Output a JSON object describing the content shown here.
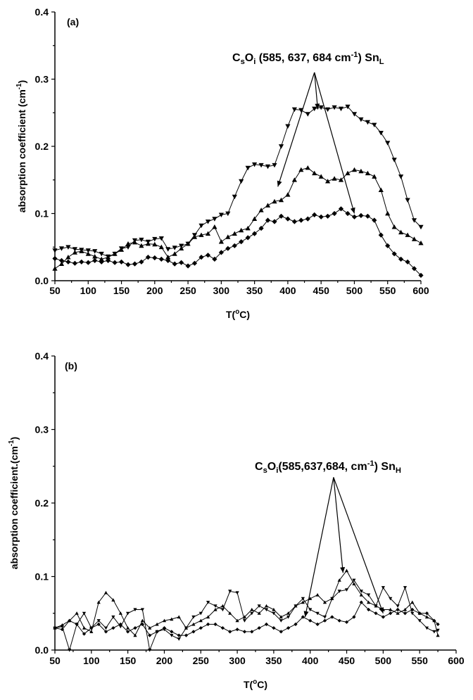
{
  "chart_data": [
    {
      "panel": "(a)",
      "type": "line",
      "xlabel": "T(°C)",
      "ylabel": "absorption coefficient (cm⁻¹)",
      "xlim": [
        50,
        600
      ],
      "ylim": [
        0,
        0.4
      ],
      "xticks": [
        50,
        100,
        150,
        200,
        250,
        300,
        350,
        400,
        450,
        500,
        550,
        600
      ],
      "yticks": [
        0.0,
        0.1,
        0.2,
        0.3,
        0.4
      ],
      "ytick_labels": [
        "0.0",
        "0.1",
        "0.2",
        "0.3",
        "0.4"
      ],
      "annotation": {
        "parts": [
          {
            "t": "C",
            "s": "normal"
          },
          {
            "t": "s",
            "s": "sub"
          },
          {
            "t": "O",
            "s": "normal"
          },
          {
            "t": "i",
            "s": "sub"
          },
          {
            "t": " (585, 637, 684 cm",
            "s": "normal"
          },
          {
            "t": "-1",
            "s": "sup"
          },
          {
            "t": ") Sn",
            "s": "normal"
          },
          {
            "t": "L",
            "s": "sub"
          }
        ],
        "arrow_origin": [
          440,
          0.31
        ],
        "arrow_targets": [
          [
            385,
            0.14
          ],
          [
            445,
            0.255
          ],
          [
            500,
            0.1
          ]
        ]
      },
      "series": [
        {
          "marker": "triangle-down",
          "x": [
            50,
            60,
            70,
            80,
            90,
            100,
            110,
            120,
            130,
            140,
            150,
            160,
            170,
            180,
            190,
            200,
            210,
            220,
            230,
            240,
            250,
            260,
            270,
            280,
            290,
            300,
            310,
            320,
            330,
            340,
            350,
            360,
            370,
            380,
            390,
            400,
            410,
            420,
            430,
            440,
            450,
            460,
            470,
            480,
            490,
            500,
            510,
            520,
            530,
            540,
            550,
            560,
            570,
            580,
            590,
            600
          ],
          "y": [
            0.045,
            0.048,
            0.05,
            0.047,
            0.046,
            0.045,
            0.044,
            0.04,
            0.036,
            0.04,
            0.048,
            0.05,
            0.06,
            0.061,
            0.058,
            0.062,
            0.063,
            0.047,
            0.049,
            0.052,
            0.055,
            0.068,
            0.082,
            0.088,
            0.092,
            0.098,
            0.1,
            0.125,
            0.148,
            0.168,
            0.173,
            0.172,
            0.17,
            0.172,
            0.2,
            0.23,
            0.255,
            0.254,
            0.248,
            0.256,
            0.258,
            0.255,
            0.258,
            0.256,
            0.259,
            0.248,
            0.24,
            0.236,
            0.232,
            0.22,
            0.205,
            0.18,
            0.155,
            0.12,
            0.09,
            0.08
          ]
        },
        {
          "marker": "triangle-up",
          "x": [
            50,
            60,
            70,
            80,
            90,
            100,
            110,
            120,
            130,
            140,
            150,
            160,
            170,
            180,
            190,
            200,
            210,
            220,
            230,
            240,
            250,
            260,
            270,
            280,
            290,
            300,
            310,
            320,
            330,
            340,
            350,
            360,
            370,
            380,
            390,
            400,
            410,
            420,
            430,
            440,
            450,
            460,
            470,
            480,
            490,
            500,
            510,
            520,
            530,
            540,
            550,
            560,
            570,
            580,
            590,
            600
          ],
          "y": [
            0.018,
            0.025,
            0.035,
            0.042,
            0.044,
            0.04,
            0.036,
            0.032,
            0.035,
            0.04,
            0.046,
            0.055,
            0.057,
            0.052,
            0.055,
            0.054,
            0.05,
            0.035,
            0.04,
            0.048,
            0.055,
            0.065,
            0.068,
            0.07,
            0.08,
            0.058,
            0.065,
            0.07,
            0.075,
            0.078,
            0.092,
            0.105,
            0.112,
            0.118,
            0.12,
            0.128,
            0.15,
            0.165,
            0.168,
            0.16,
            0.155,
            0.148,
            0.152,
            0.15,
            0.16,
            0.165,
            0.163,
            0.16,
            0.155,
            0.135,
            0.1,
            0.08,
            0.072,
            0.068,
            0.062,
            0.056
          ]
        },
        {
          "marker": "diamond",
          "x": [
            50,
            60,
            70,
            80,
            90,
            100,
            110,
            120,
            130,
            140,
            150,
            160,
            170,
            180,
            190,
            200,
            210,
            220,
            230,
            240,
            250,
            260,
            270,
            280,
            290,
            300,
            310,
            320,
            330,
            340,
            350,
            360,
            370,
            380,
            390,
            400,
            410,
            420,
            430,
            440,
            450,
            460,
            470,
            480,
            490,
            500,
            510,
            520,
            530,
            540,
            550,
            560,
            570,
            580,
            590,
            600
          ],
          "y": [
            0.033,
            0.03,
            0.028,
            0.026,
            0.028,
            0.027,
            0.03,
            0.028,
            0.03,
            0.027,
            0.028,
            0.024,
            0.025,
            0.028,
            0.035,
            0.034,
            0.032,
            0.03,
            0.025,
            0.027,
            0.022,
            0.026,
            0.035,
            0.038,
            0.032,
            0.042,
            0.048,
            0.052,
            0.058,
            0.064,
            0.07,
            0.078,
            0.09,
            0.088,
            0.096,
            0.092,
            0.088,
            0.09,
            0.092,
            0.098,
            0.095,
            0.096,
            0.1,
            0.107,
            0.1,
            0.095,
            0.097,
            0.096,
            0.09,
            0.068,
            0.052,
            0.04,
            0.032,
            0.028,
            0.018,
            0.008
          ]
        }
      ]
    },
    {
      "panel": "(b)",
      "type": "line",
      "xlabel": "T(°C)",
      "ylabel": "absorption coefficient.(cm⁻¹)",
      "xlim": [
        50,
        600
      ],
      "ylim": [
        0,
        0.4
      ],
      "xticks": [
        50,
        100,
        150,
        200,
        250,
        300,
        350,
        400,
        450,
        500,
        550,
        600
      ],
      "yticks": [
        0.0,
        0.1,
        0.2,
        0.3,
        0.4
      ],
      "ytick_labels": [
        "0.0",
        "0.1",
        "0.2",
        "0.3",
        "0.4"
      ],
      "annotation": {
        "parts": [
          {
            "t": "C",
            "s": "normal"
          },
          {
            "t": "s",
            "s": "sub"
          },
          {
            "t": "O",
            "s": "normal"
          },
          {
            "t": "i",
            "s": "sub"
          },
          {
            "t": "(585,637,684, cm",
            "s": "normal"
          },
          {
            "t": "-1",
            "s": "sup"
          },
          {
            "t": ") Sn",
            "s": "normal"
          },
          {
            "t": "H",
            "s": "sub"
          }
        ],
        "arrow_origin": [
          432,
          0.235
        ],
        "arrow_targets": [
          [
            393,
            0.045
          ],
          [
            445,
            0.105
          ],
          [
            500,
            0.05
          ]
        ]
      },
      "series": [
        {
          "marker": "triangle-down",
          "x": [
            50,
            60,
            70,
            80,
            90,
            100,
            110,
            120,
            130,
            140,
            150,
            160,
            170,
            180,
            190,
            200,
            210,
            220,
            230,
            240,
            250,
            260,
            270,
            280,
            290,
            300,
            310,
            320,
            330,
            340,
            350,
            360,
            370,
            380,
            390,
            400,
            410,
            420,
            430,
            440,
            450,
            460,
            470,
            480,
            490,
            500,
            510,
            520,
            530,
            540,
            550,
            560,
            570,
            575
          ],
          "y": [
            0.03,
            0.032,
            0.0,
            0.035,
            0.05,
            0.03,
            0.04,
            0.03,
            0.045,
            0.032,
            0.05,
            0.055,
            0.055,
            0.0,
            0.025,
            0.028,
            0.02,
            0.015,
            0.03,
            0.045,
            0.05,
            0.065,
            0.06,
            0.055,
            0.08,
            0.078,
            0.04,
            0.05,
            0.06,
            0.055,
            0.05,
            0.04,
            0.045,
            0.06,
            0.07,
            0.055,
            0.05,
            0.045,
            0.07,
            0.08,
            0.082,
            0.095,
            0.08,
            0.075,
            0.06,
            0.085,
            0.07,
            0.06,
            0.085,
            0.05,
            0.04,
            0.03,
            0.025,
            0.027
          ]
        },
        {
          "marker": "triangle-up",
          "x": [
            50,
            60,
            70,
            80,
            90,
            100,
            110,
            120,
            130,
            140,
            150,
            160,
            170,
            180,
            190,
            200,
            210,
            220,
            230,
            240,
            250,
            260,
            270,
            280,
            290,
            300,
            310,
            320,
            330,
            340,
            350,
            360,
            370,
            380,
            390,
            400,
            410,
            420,
            430,
            440,
            450,
            460,
            470,
            480,
            490,
            500,
            510,
            520,
            530,
            540,
            550,
            560,
            570,
            575
          ],
          "y": [
            0.03,
            0.034,
            0.04,
            0.05,
            0.03,
            0.025,
            0.065,
            0.078,
            0.068,
            0.05,
            0.03,
            0.02,
            0.04,
            0.03,
            0.035,
            0.04,
            0.042,
            0.045,
            0.03,
            0.035,
            0.04,
            0.045,
            0.055,
            0.06,
            0.05,
            0.04,
            0.045,
            0.055,
            0.05,
            0.06,
            0.055,
            0.045,
            0.05,
            0.06,
            0.065,
            0.07,
            0.075,
            0.065,
            0.07,
            0.095,
            0.108,
            0.09,
            0.075,
            0.065,
            0.06,
            0.055,
            0.055,
            0.05,
            0.055,
            0.065,
            0.05,
            0.045,
            0.04,
            0.02
          ]
        },
        {
          "marker": "diamond",
          "x": [
            50,
            60,
            70,
            80,
            90,
            100,
            110,
            120,
            130,
            140,
            150,
            160,
            170,
            180,
            190,
            200,
            210,
            220,
            230,
            240,
            250,
            260,
            270,
            280,
            290,
            300,
            310,
            320,
            330,
            340,
            350,
            360,
            370,
            380,
            390,
            400,
            410,
            420,
            430,
            440,
            450,
            460,
            470,
            480,
            490,
            500,
            510,
            520,
            530,
            540,
            550,
            560,
            570,
            575
          ],
          "y": [
            0.03,
            0.028,
            0.04,
            0.035,
            0.022,
            0.03,
            0.035,
            0.025,
            0.03,
            0.035,
            0.025,
            0.03,
            0.035,
            0.02,
            0.025,
            0.03,
            0.025,
            0.02,
            0.02,
            0.025,
            0.03,
            0.035,
            0.035,
            0.03,
            0.025,
            0.028,
            0.025,
            0.025,
            0.03,
            0.035,
            0.03,
            0.025,
            0.03,
            0.035,
            0.045,
            0.04,
            0.035,
            0.04,
            0.045,
            0.04,
            0.038,
            0.045,
            0.065,
            0.055,
            0.05,
            0.045,
            0.05,
            0.055,
            0.05,
            0.055,
            0.05,
            0.05,
            0.04,
            0.035
          ]
        }
      ]
    }
  ]
}
